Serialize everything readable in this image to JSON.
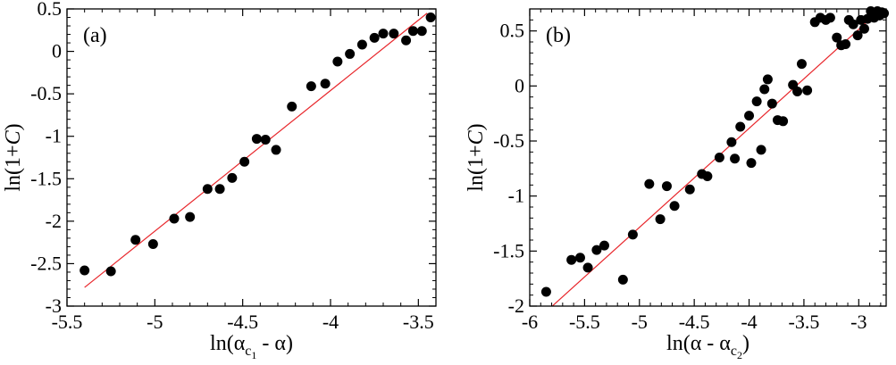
{
  "chart_data": [
    {
      "type": "scatter",
      "panel_label": "(a)",
      "xlabel": {
        "prefix": "ln(α",
        "sub1": "c",
        "sub2": "1",
        "suffix": " - α)"
      },
      "ylabel": {
        "prefix": "ln(1+",
        "italic": "C",
        "suffix": ")"
      },
      "xlim": [
        -5.5,
        -3.4
      ],
      "ylim": [
        -3,
        0.5
      ],
      "xticks": [
        -5.5,
        -5,
        -4.5,
        -4,
        -3.5
      ],
      "xtick_labels": [
        "-5.5",
        "-5",
        "-4.5",
        "-4",
        "-3.5"
      ],
      "yticks": [
        -3,
        -2.5,
        -2,
        -1.5,
        -1,
        -0.5,
        0,
        0.5
      ],
      "ytick_labels": [
        "-3",
        "-2.5",
        "-2",
        "-1.5",
        "-1",
        "-0.5",
        "0",
        "0.5"
      ],
      "grid": false,
      "points": [
        [
          -5.4,
          -2.58
        ],
        [
          -5.25,
          -2.59
        ],
        [
          -5.11,
          -2.22
        ],
        [
          -5.01,
          -2.27
        ],
        [
          -4.89,
          -1.97
        ],
        [
          -4.8,
          -1.95
        ],
        [
          -4.7,
          -1.62
        ],
        [
          -4.63,
          -1.62
        ],
        [
          -4.56,
          -1.49
        ],
        [
          -4.49,
          -1.3
        ],
        [
          -4.42,
          -1.03
        ],
        [
          -4.37,
          -1.04
        ],
        [
          -4.31,
          -1.16
        ],
        [
          -4.22,
          -0.65
        ],
        [
          -4.11,
          -0.41
        ],
        [
          -4.03,
          -0.38
        ],
        [
          -3.96,
          -0.12
        ],
        [
          -3.89,
          -0.03
        ],
        [
          -3.82,
          0.08
        ],
        [
          -3.75,
          0.16
        ],
        [
          -3.7,
          0.21
        ],
        [
          -3.64,
          0.21
        ],
        [
          -3.57,
          0.13
        ],
        [
          -3.53,
          0.24
        ],
        [
          -3.48,
          0.24
        ],
        [
          -3.43,
          0.4
        ]
      ],
      "fit_line": {
        "x": [
          -5.4,
          -3.45
        ],
        "y": [
          -2.78,
          0.45
        ],
        "color": "#e8262b"
      },
      "marker_color": "#000000"
    },
    {
      "type": "scatter",
      "panel_label": "(b)",
      "xlabel": {
        "prefix": "ln(α - α",
        "sub1": "c",
        "sub2": "2",
        "suffix": ")"
      },
      "ylabel": {
        "prefix": "ln(1+",
        "italic": "C",
        "suffix": ")"
      },
      "xlim": [
        -6,
        -2.75
      ],
      "ylim": [
        -2,
        0.7
      ],
      "xticks": [
        -6,
        -5.5,
        -5,
        -4.5,
        -4,
        -3.5,
        -3
      ],
      "xtick_labels": [
        "-6",
        "-5.5",
        "-5",
        "-4.5",
        "-4",
        "-3.5",
        "-3"
      ],
      "yticks": [
        -2,
        -1.5,
        -1,
        -0.5,
        0,
        0.5
      ],
      "ytick_labels": [
        "-2",
        "-1.5",
        "-1",
        "-0.5",
        "0",
        "0.5"
      ],
      "grid": false,
      "points": [
        [
          -5.85,
          -1.87
        ],
        [
          -5.62,
          -1.58
        ],
        [
          -5.54,
          -1.56
        ],
        [
          -5.47,
          -1.65
        ],
        [
          -5.39,
          -1.49
        ],
        [
          -5.32,
          -1.45
        ],
        [
          -5.15,
          -1.76
        ],
        [
          -5.06,
          -1.35
        ],
        [
          -4.91,
          -0.89
        ],
        [
          -4.81,
          -1.21
        ],
        [
          -4.75,
          -0.91
        ],
        [
          -4.68,
          -1.09
        ],
        [
          -4.54,
          -0.94
        ],
        [
          -4.43,
          -0.8
        ],
        [
          -4.38,
          -0.82
        ],
        [
          -4.27,
          -0.65
        ],
        [
          -4.16,
          -0.51
        ],
        [
          -4.13,
          -0.66
        ],
        [
          -4.08,
          -0.37
        ],
        [
          -4.0,
          -0.27
        ],
        [
          -3.98,
          -0.7
        ],
        [
          -3.93,
          -0.14
        ],
        [
          -3.89,
          -0.58
        ],
        [
          -3.86,
          -0.03
        ],
        [
          -3.83,
          0.06
        ],
        [
          -3.79,
          -0.16
        ],
        [
          -3.74,
          -0.31
        ],
        [
          -3.69,
          -0.32
        ],
        [
          -3.6,
          0.01
        ],
        [
          -3.56,
          -0.05
        ],
        [
          -3.52,
          0.2
        ],
        [
          -3.47,
          -0.04
        ],
        [
          -3.4,
          0.58
        ],
        [
          -3.35,
          0.62
        ],
        [
          -3.3,
          0.6
        ],
        [
          -3.26,
          0.62
        ],
        [
          -3.2,
          0.44
        ],
        [
          -3.16,
          0.37
        ],
        [
          -3.12,
          0.38
        ],
        [
          -3.09,
          0.6
        ],
        [
          -3.05,
          0.56
        ],
        [
          -3.01,
          0.46
        ],
        [
          -2.98,
          0.6
        ],
        [
          -2.95,
          0.52
        ],
        [
          -2.92,
          0.61
        ],
        [
          -2.89,
          0.68
        ],
        [
          -2.86,
          0.62
        ],
        [
          -2.83,
          0.68
        ],
        [
          -2.81,
          0.64
        ],
        [
          -2.79,
          0.67
        ],
        [
          -2.77,
          0.66
        ]
      ],
      "fit_line": {
        "x": [
          -5.85,
          -2.75
        ],
        "y": [
          -2.05,
          0.74
        ],
        "color": "#e8262b"
      },
      "marker_color": "#000000"
    }
  ]
}
